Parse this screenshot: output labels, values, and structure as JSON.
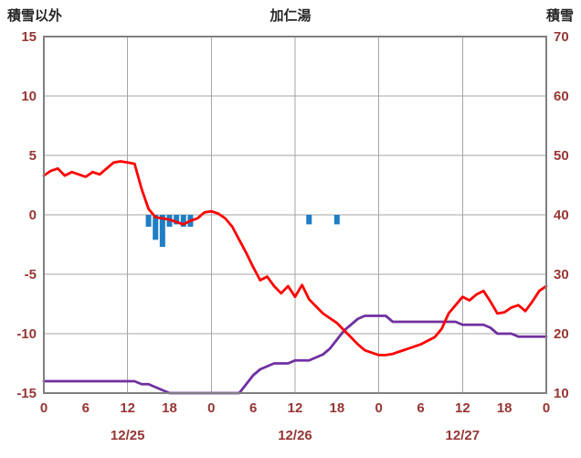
{
  "title": "加仁湯",
  "left_axis_title": "積雪以外",
  "right_axis_title": "積雪",
  "colors": {
    "temperature": "#ff0000",
    "snow_depth": "#7030a0",
    "precipitation": "#1f7ec4",
    "tick_label": "#963634",
    "grid": "#a6a6a6",
    "border": "#808080",
    "title_text": "#262626"
  },
  "chart_data": {
    "type": "line",
    "title": "加仁湯",
    "x_unit": "hour",
    "x_range_hours": [
      0,
      72
    ],
    "x_tick_interval_hours": 6,
    "x_tick_labels": [
      "0",
      "6",
      "12",
      "18",
      "0",
      "6",
      "12",
      "18",
      "0",
      "6",
      "12",
      "18",
      "0"
    ],
    "date_labels": [
      {
        "label": "12/25",
        "hour": 12
      },
      {
        "label": "12/26",
        "hour": 36
      },
      {
        "label": "12/27",
        "hour": 60
      }
    ],
    "left_axis": {
      "title": "積雪以外",
      "min": -15,
      "max": 15,
      "ticks": [
        15,
        10,
        5,
        0,
        -5,
        -10,
        -15
      ]
    },
    "right_axis": {
      "title": "積雪",
      "min": 10,
      "max": 70,
      "ticks": [
        70,
        60,
        50,
        40,
        30,
        20,
        10
      ]
    },
    "grid_vertical_hours": [
      12,
      24,
      36,
      48,
      60
    ],
    "grid_horizontal_left_values": [
      10,
      5,
      0,
      -5,
      -10
    ],
    "series": [
      {
        "name": "temperature",
        "axis": "left",
        "type": "line",
        "color_key": "temperature",
        "values": [
          3.3,
          3.7,
          3.9,
          3.3,
          3.6,
          3.4,
          3.2,
          3.6,
          3.4,
          3.9,
          4.4,
          4.5,
          4.4,
          4.3,
          2.2,
          0.5,
          -0.2,
          -0.3,
          -0.4,
          -0.6,
          -0.8,
          -0.5,
          -0.3,
          0.2,
          0.3,
          0.1,
          -0.3,
          -1.0,
          -2.1,
          -3.2,
          -4.4,
          -5.5,
          -5.2,
          -6.0,
          -6.6,
          -6.0,
          -6.9,
          -5.9,
          -7.1,
          -7.7,
          -8.3,
          -8.7,
          -9.1,
          -9.7,
          -10.3,
          -10.9,
          -11.4,
          -11.6,
          -11.8,
          -11.8,
          -11.7,
          -11.5,
          -11.3,
          -11.1,
          -10.9,
          -10.6,
          -10.3,
          -9.6,
          -8.3,
          -7.6,
          -6.9,
          -7.2,
          -6.7,
          -6.4,
          -7.3,
          -8.3,
          -8.2,
          -7.8,
          -7.6,
          -8.1,
          -7.3,
          -6.4,
          -6.0
        ]
      },
      {
        "name": "snow_depth",
        "axis": "right",
        "type": "line",
        "color_key": "snow_depth",
        "values": [
          12,
          12,
          12,
          12,
          12,
          12,
          12,
          12,
          12,
          12,
          12,
          12,
          12,
          12,
          11.5,
          11.5,
          11,
          10.5,
          10,
          10,
          10,
          10,
          10,
          10,
          10,
          10,
          10,
          10,
          10,
          11.5,
          13,
          14,
          14.5,
          15,
          15,
          15,
          15.5,
          15.5,
          15.5,
          16,
          16.5,
          17.5,
          19,
          20.5,
          21.5,
          22.5,
          23,
          23,
          23,
          23,
          22,
          22,
          22,
          22,
          22,
          22,
          22,
          22,
          22,
          22,
          21.5,
          21.5,
          21.5,
          21.5,
          21,
          20,
          20,
          20,
          19.5,
          19.5,
          19.5,
          19.5,
          19.5
        ]
      },
      {
        "name": "precipitation",
        "axis": "left",
        "type": "bar",
        "color_key": "precipitation",
        "points": [
          {
            "hour": 15,
            "value": -1.0
          },
          {
            "hour": 16,
            "value": -2.1
          },
          {
            "hour": 17,
            "value": -2.7
          },
          {
            "hour": 18,
            "value": -1.0
          },
          {
            "hour": 19,
            "value": -0.8
          },
          {
            "hour": 20,
            "value": -1.0
          },
          {
            "hour": 21,
            "value": -1.0
          },
          {
            "hour": 38,
            "value": -0.8
          },
          {
            "hour": 42,
            "value": -0.8
          }
        ]
      }
    ]
  }
}
